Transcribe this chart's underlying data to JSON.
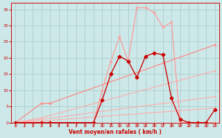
{
  "xlabel": "Vent moyen/en rafales ( km/h )",
  "bg_color": "#cde8e8",
  "grid_color": "#aacccc",
  "x_ticks": [
    0,
    1,
    2,
    3,
    4,
    5,
    6,
    7,
    8,
    9,
    10,
    11,
    12,
    13,
    14,
    15,
    16,
    17,
    18,
    19,
    20,
    21,
    22,
    23
  ],
  "y_ticks": [
    0,
    5,
    10,
    15,
    20,
    25,
    30,
    35
  ],
  "xlim": [
    -0.5,
    23.5
  ],
  "ylim": [
    0,
    37
  ],
  "series": [
    {
      "x": [
        0,
        3,
        23
      ],
      "y": [
        0,
        0.5,
        4.5
      ],
      "color": "#ffaaaa",
      "lw": 0.8,
      "ms": 2.0,
      "marker": "+"
    },
    {
      "x": [
        0,
        3,
        23
      ],
      "y": [
        0,
        1,
        8
      ],
      "color": "#ffaaaa",
      "lw": 0.8,
      "ms": 2.0,
      "marker": "+"
    },
    {
      "x": [
        0,
        3,
        23
      ],
      "y": [
        0,
        1.5,
        16
      ],
      "color": "#ffaaaa",
      "lw": 0.8,
      "ms": 2.0,
      "marker": "+"
    },
    {
      "x": [
        0,
        3,
        4,
        23
      ],
      "y": [
        0,
        6,
        6,
        24
      ],
      "color": "#ff8888",
      "lw": 0.9,
      "ms": 2.5,
      "marker": "+"
    },
    {
      "x": [
        0,
        3,
        4,
        9,
        10,
        11,
        12,
        13,
        14,
        15,
        16,
        17,
        18,
        19,
        20,
        21,
        22,
        23
      ],
      "y": [
        0,
        0,
        0,
        0,
        10,
        19,
        26.5,
        19,
        35.5,
        35.5,
        34,
        29.5,
        31,
        0,
        0,
        0,
        0,
        0
      ],
      "color": "#ff9999",
      "lw": 0.9,
      "ms": 2.5,
      "marker": "+"
    },
    {
      "x": [
        0,
        3,
        4,
        9,
        10,
        11,
        12,
        13,
        14,
        15,
        16,
        17,
        18,
        19,
        20,
        21,
        22,
        23
      ],
      "y": [
        0,
        0,
        0,
        0,
        7,
        15,
        20.5,
        19,
        14,
        20.5,
        21.5,
        21,
        7.5,
        1,
        0,
        0,
        0,
        4
      ],
      "color": "#cc0000",
      "lw": 1.0,
      "ms": 2.5,
      "marker": "D"
    }
  ]
}
